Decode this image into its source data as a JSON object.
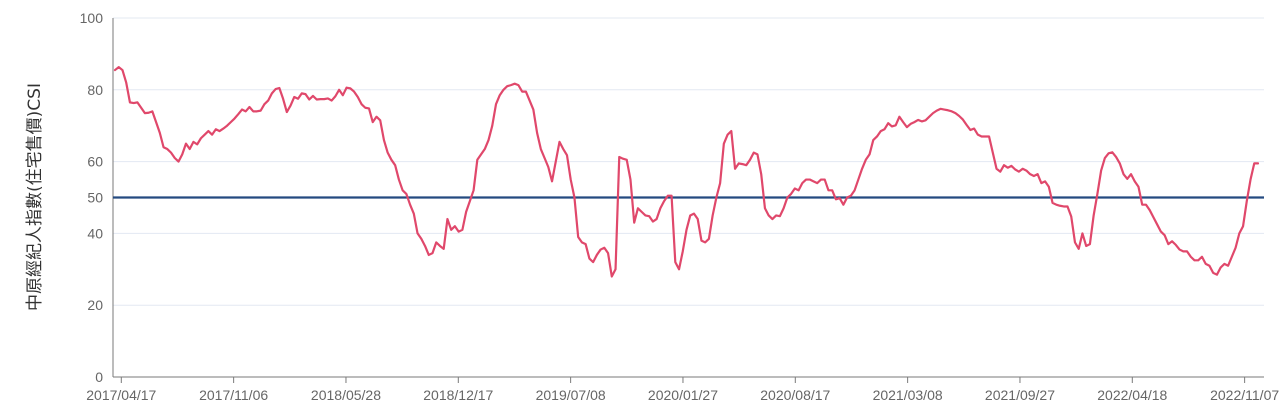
{
  "chart_data": {
    "type": "line",
    "ylabel": "中原經紀人指數(住宅售價)CSI",
    "ylim": [
      0,
      100
    ],
    "y_ticks": [
      0,
      20,
      40,
      50,
      60,
      80,
      100
    ],
    "x_ticks": [
      "2017/04/17",
      "2017/11/06",
      "2018/05/28",
      "2018/12/17",
      "2019/07/08",
      "2020/01/27",
      "2020/08/17",
      "2021/03/08",
      "2021/09/27",
      "2022/04/18",
      "2022/11/07"
    ],
    "reference_line": 50,
    "grid": true,
    "colors": {
      "series": "#e0486b",
      "reference": "#244a80",
      "grid": "#e3e8f2",
      "axis": "#7a7a7a"
    },
    "x_start": "2017/04/02",
    "x_end": "2022/12/12",
    "series": [
      {
        "values": [
          85.5,
          86.3,
          85.5,
          82,
          76.5,
          76.3,
          76.5,
          75,
          73.5,
          73.6,
          74,
          71,
          68,
          64,
          63.5,
          62.5,
          61,
          60,
          62,
          65,
          63.5,
          65.5,
          64.8,
          66.5,
          67.5,
          68.5,
          67.5,
          69,
          68.5,
          69.2,
          70,
          71,
          72,
          73.2,
          74.5,
          74,
          75.2,
          74,
          74,
          74.2,
          76,
          77,
          79,
          80.2,
          80.5,
          77.5,
          73.8,
          75.6,
          78,
          77.5,
          79,
          78.8,
          77.3,
          78.3,
          77.3,
          77.4,
          77.4,
          77.6,
          77,
          78.2,
          80,
          78.5,
          80.6,
          80.4,
          79.5,
          78,
          76,
          75,
          74.8,
          71,
          72.5,
          71.5,
          66,
          62.5,
          60.5,
          59,
          55,
          52,
          51,
          48,
          45.5,
          40,
          38.5,
          36.5,
          34,
          34.5,
          37.5,
          36.5,
          35.7,
          44,
          41,
          42,
          40.5,
          41,
          46,
          49,
          52,
          60.5,
          62,
          63.5,
          66,
          70,
          76,
          78.5,
          80,
          81,
          81.3,
          81.7,
          81.3,
          79.5,
          79.5,
          77,
          74.5,
          68,
          63.5,
          61,
          58.5,
          54.5,
          60,
          65.5,
          63.5,
          61.8,
          55,
          50,
          39,
          37.5,
          37,
          33,
          32,
          34,
          35.5,
          36,
          34.5,
          28,
          30,
          61.3,
          60.8,
          60.5,
          55,
          43,
          47,
          46,
          45,
          44.8,
          43.3,
          44,
          47,
          49,
          50.5,
          50.5,
          32,
          30,
          35,
          41,
          45,
          45.5,
          44,
          38,
          37.5,
          38.5,
          45,
          50,
          54,
          65,
          67.5,
          68.5,
          58,
          59.5,
          59.3,
          59,
          60.5,
          62.5,
          62,
          56.5,
          47,
          45,
          44,
          45,
          44.8,
          47,
          50,
          51,
          52.5,
          52,
          54,
          55,
          55,
          54.5,
          54,
          55,
          55,
          52,
          52,
          49.5,
          49.8,
          48,
          50,
          50.5,
          52,
          55,
          58,
          60.5,
          62,
          66,
          67,
          68.5,
          69,
          70.7,
          69.8,
          70.1,
          72.5,
          71,
          69.6,
          70.5,
          71,
          71.6,
          71.2,
          71.5,
          72.5,
          73.5,
          74.2,
          74.7,
          74.5,
          74.3,
          74,
          73.5,
          72.7,
          71.7,
          70.2,
          68.8,
          69.2,
          67.5,
          67,
          67,
          67,
          62.5,
          58,
          57.2,
          59,
          58.3,
          58.8,
          57.8,
          57.2,
          58,
          57.5,
          56.5,
          56,
          56.5,
          54,
          54.5,
          53,
          48.5,
          48,
          47.7,
          47.5,
          47.5,
          44.7,
          37.5,
          35.7,
          40,
          36.5,
          37,
          45,
          51,
          57.5,
          61,
          62.3,
          62.6,
          61.3,
          59.5,
          56.5,
          55.2,
          56.5,
          54.5,
          53,
          48,
          48,
          46.5,
          44.5,
          42.5,
          40.5,
          39.5,
          37,
          37.8,
          36.8,
          35.5,
          35,
          35,
          33.5,
          32.5,
          32.5,
          33.5,
          31.5,
          31,
          29,
          28.5,
          30.5,
          31.5,
          31,
          33.5,
          36,
          40,
          42,
          49,
          55,
          59.5,
          59.5
        ]
      }
    ]
  }
}
